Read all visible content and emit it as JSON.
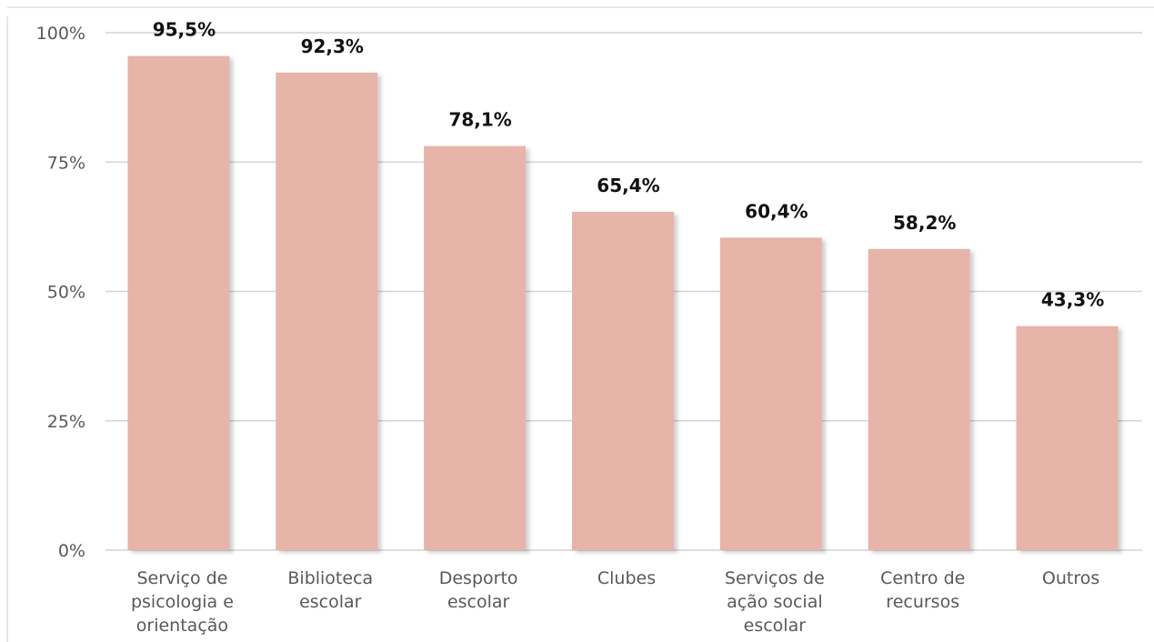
{
  "chart_data": {
    "type": "bar",
    "categories": [
      [
        "Serviço de",
        "psicologia e",
        "orientação"
      ],
      [
        "Biblioteca",
        "escolar"
      ],
      [
        "Desporto",
        "escolar"
      ],
      [
        "Clubes"
      ],
      [
        "Serviços de",
        "ação social",
        "escolar"
      ],
      [
        "Centro de",
        "recursos"
      ],
      [
        "Outros"
      ]
    ],
    "values": [
      95.5,
      92.3,
      78.1,
      65.4,
      60.4,
      58.2,
      43.3
    ],
    "data_labels": [
      "95,5%",
      "92,3%",
      "78,1%",
      "65,4%",
      "60,4%",
      "58,2%",
      "43,3%"
    ],
    "title": "",
    "xlabel": "",
    "ylabel": "",
    "ylim": [
      0,
      100
    ],
    "yticks": [
      0,
      25,
      50,
      75,
      100
    ],
    "ytick_labels": [
      "0%",
      "25%",
      "50%",
      "75%",
      "100%"
    ],
    "grid": true,
    "legend": "none",
    "bar_color": "#e6b4a9",
    "bar_shadow_color": "#cfcfcf",
    "grid_color": "#d4d4d4",
    "tick_label_color": "#595959",
    "data_label_color": "#111111"
  }
}
